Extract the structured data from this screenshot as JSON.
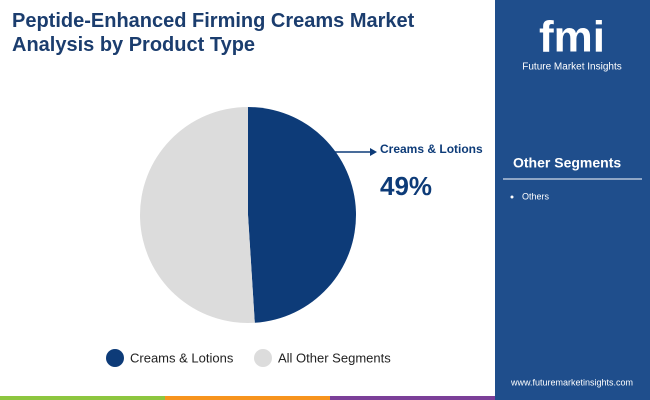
{
  "chart_data": {
    "type": "pie",
    "title": "Peptide-Enhanced Firming Creams Market Analysis by Product Type",
    "categories": [
      "Creams & Lotions",
      "All Other Segments"
    ],
    "values": [
      49,
      51
    ],
    "value_labels": [
      "49%",
      null
    ],
    "colors": [
      "#0d3b78",
      "#dcdcdc"
    ]
  },
  "sidebar": {
    "heading": "Other Segments",
    "items": [
      "Others"
    ]
  },
  "brand": {
    "logo": "fmi",
    "name": "Future Market Insights",
    "url": "www.futuremarketinsights.com"
  }
}
